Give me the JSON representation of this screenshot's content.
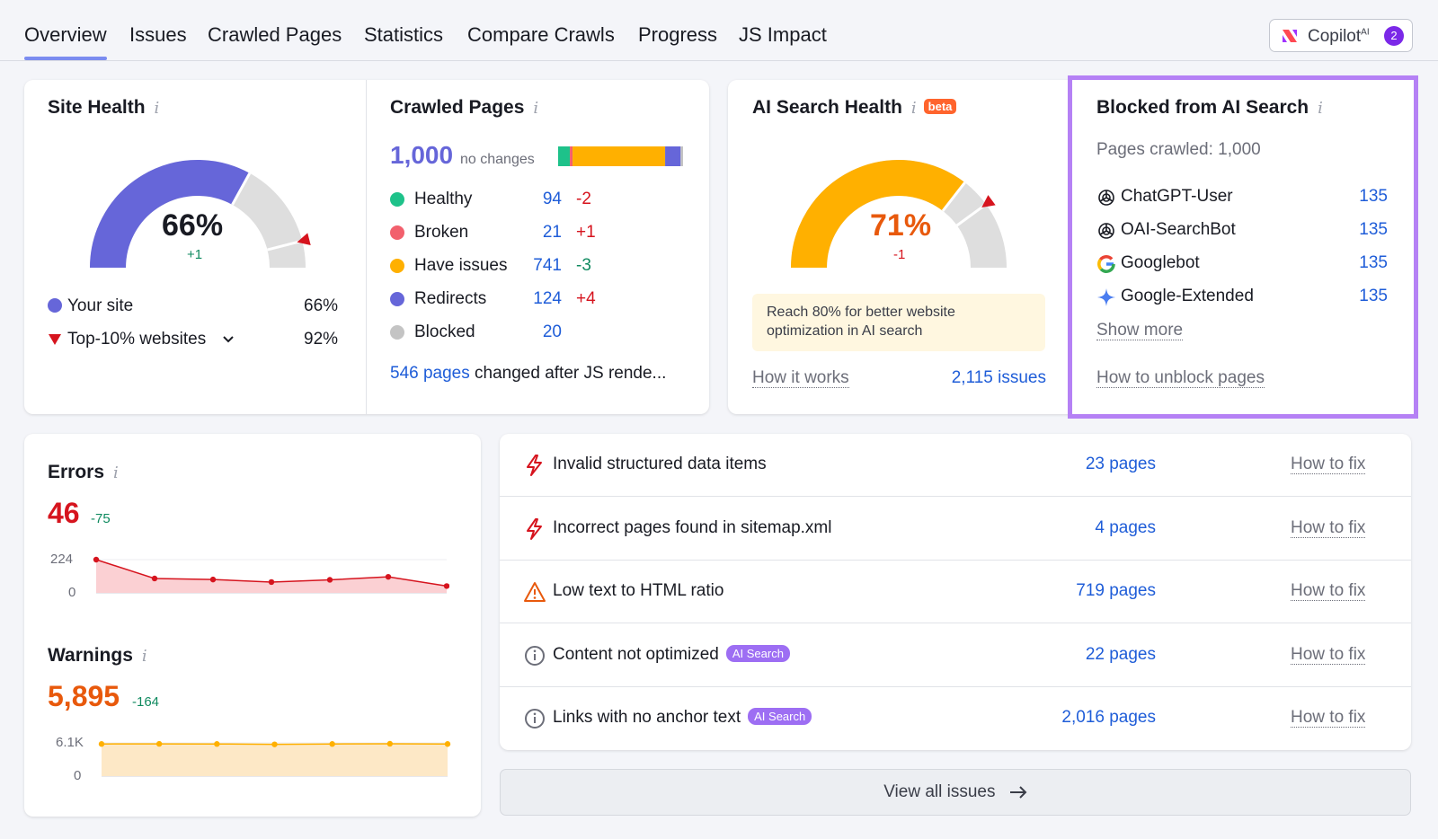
{
  "nav": {
    "tabs": [
      {
        "label": "Overview"
      },
      {
        "label": "Issues"
      },
      {
        "label": "Crawled Pages"
      },
      {
        "label": "Statistics"
      },
      {
        "label": "Compare Crawls"
      },
      {
        "label": "Progress"
      },
      {
        "label": "JS Impact"
      }
    ],
    "active_tab": "Overview",
    "copilot": {
      "label": "Copilot",
      "sup": "AI",
      "badge": "2"
    }
  },
  "site_health": {
    "title": "Site Health",
    "percent": "66%",
    "percent_value": 66,
    "top10_value": 92,
    "delta": "+1",
    "legend": [
      {
        "label": "Your site",
        "value": "66%"
      },
      {
        "label": "Top-10% websites",
        "value": "92%"
      }
    ],
    "colors": {
      "site": "#6666d9",
      "top": "#d6141e",
      "track": "#dedede"
    }
  },
  "crawled_pages": {
    "title": "Crawled Pages",
    "total": "1,000",
    "total_note": "no changes",
    "rows": [
      {
        "label": "Healthy",
        "value": "94",
        "delta": "-2",
        "color": "#1ec28a",
        "delta_color": "red"
      },
      {
        "label": "Broken",
        "value": "21",
        "delta": "+1",
        "color": "#f2606d",
        "delta_color": "red"
      },
      {
        "label": "Have issues",
        "value": "741",
        "delta": "-3",
        "color": "#ffb000",
        "delta_color": "green"
      },
      {
        "label": "Redirects",
        "value": "124",
        "delta": "+4",
        "color": "#6666d9",
        "delta_color": "red"
      },
      {
        "label": "Blocked",
        "value": "20",
        "delta": "",
        "color": "#c4c4c4",
        "delta_color": "red"
      }
    ],
    "footer_link": "546 pages",
    "footer_text": "changed after JS rende..."
  },
  "ai_search_health": {
    "title": "AI Search Health",
    "badge": "beta",
    "percent": "71%",
    "percent_value": 71,
    "delta": "-1",
    "notice": "Reach 80% for better website optimization in AI search",
    "how_link": "How it works",
    "issues_link": "2,115 issues",
    "colors": {
      "fill": "#ffb000",
      "track": "#dedede",
      "value": "#e8590c"
    }
  },
  "blocked_ai": {
    "title": "Blocked from AI Search",
    "subtitle": "Pages crawled: 1,000",
    "bots": [
      {
        "name": "ChatGPT-User",
        "count": "135",
        "icon": "openai-icon"
      },
      {
        "name": "OAI-SearchBot",
        "count": "135",
        "icon": "openai-icon"
      },
      {
        "name": "Googlebot",
        "count": "135",
        "icon": "google-icon"
      },
      {
        "name": "Google-Extended",
        "count": "135",
        "icon": "gemini-icon"
      }
    ],
    "show_more": "Show more",
    "unblock_link": "How to unblock pages",
    "highlight_color": "#b581f5"
  },
  "errors": {
    "title": "Errors",
    "value": "46",
    "delta": "-75",
    "y_max_label": "224",
    "y_min_label": "0",
    "color": "#d6141e"
  },
  "warnings": {
    "title": "Warnings",
    "value": "5,895",
    "delta": "-164",
    "y_max_label": "6.1K",
    "y_min_label": "0",
    "color": "#e8590c"
  },
  "chart_data": [
    {
      "type": "area",
      "series": [
        {
          "values": [
            224,
            97,
            90,
            73,
            88,
            108,
            46
          ]
        }
      ],
      "ylim": [
        0,
        224
      ],
      "yticks": [
        "224",
        "0"
      ],
      "grid": true
    },
    {
      "type": "area",
      "series": [
        {
          "values": [
            5900,
            5920,
            5900,
            5830,
            5900,
            5940,
            5895
          ]
        }
      ],
      "ylim": [
        0,
        6100
      ],
      "yticks": [
        "6.1K",
        "0"
      ],
      "grid": true
    }
  ],
  "issues": [
    {
      "label": "Invalid structured data items",
      "count": "23 pages",
      "fix": "How to fix",
      "icon": "error-bolt-icon",
      "tag": ""
    },
    {
      "label": "Incorrect pages found in sitemap.xml",
      "count": "4 pages",
      "fix": "How to fix",
      "icon": "error-bolt-icon",
      "tag": ""
    },
    {
      "label": "Low text to HTML ratio",
      "count": "719 pages",
      "fix": "How to fix",
      "icon": "warning-triangle-icon",
      "tag": ""
    },
    {
      "label": "Content not optimized",
      "count": "22 pages",
      "fix": "How to fix",
      "icon": "info-circle-icon",
      "tag": "AI Search"
    },
    {
      "label": "Links with no anchor text",
      "count": "2,016 pages",
      "fix": "How to fix",
      "icon": "info-circle-icon",
      "tag": "AI Search"
    }
  ],
  "view_all": "View all issues"
}
